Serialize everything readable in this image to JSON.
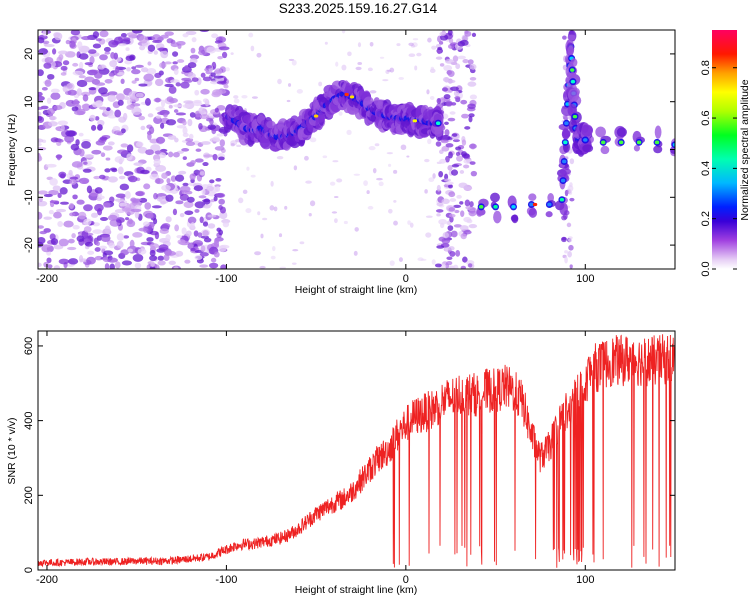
{
  "title": "S233.2025.159.16.27.G14",
  "chart_data": [
    {
      "type": "heatmap",
      "xlabel": "Height of straight line (km)",
      "ylabel": "Frequency (Hz)",
      "xlim": [
        -205,
        150
      ],
      "ylim": [
        -25,
        25
      ],
      "xticks": [
        -200,
        -100,
        0,
        100
      ],
      "yticks": [
        -20,
        -10,
        0,
        10,
        20
      ],
      "colorbar": {
        "label": "Normalized spectral amplitude",
        "range": [
          0,
          0.95
        ],
        "ticks": [
          0.0,
          0.2,
          0.4,
          0.6,
          0.8
        ],
        "tick_labels": [
          "0.0",
          "0.2",
          "0.4",
          "0.6",
          "0.8"
        ]
      },
      "ridge": [
        {
          "x": -100,
          "y": 7
        },
        {
          "x": -95,
          "y": 6
        },
        {
          "x": -90,
          "y": 4.5
        },
        {
          "x": -85,
          "y": 4
        },
        {
          "x": -80,
          "y": 4.5
        },
        {
          "x": -75,
          "y": 3
        },
        {
          "x": -70,
          "y": 2.5
        },
        {
          "x": -65,
          "y": 3
        },
        {
          "x": -60,
          "y": 4
        },
        {
          "x": -55,
          "y": 5.5
        },
        {
          "x": -50,
          "y": 7
        },
        {
          "x": -45,
          "y": 9
        },
        {
          "x": -40,
          "y": 10.5
        },
        {
          "x": -35,
          "y": 11.5
        },
        {
          "x": -30,
          "y": 11
        },
        {
          "x": -25,
          "y": 10
        },
        {
          "x": -20,
          "y": 8.5
        },
        {
          "x": -15,
          "y": 7.5
        },
        {
          "x": -10,
          "y": 7
        },
        {
          "x": -5,
          "y": 6.5
        },
        {
          "x": 0,
          "y": 6.5
        },
        {
          "x": 5,
          "y": 6
        },
        {
          "x": 10,
          "y": 6
        },
        {
          "x": 15,
          "y": 5.5
        },
        {
          "x": 18,
          "y": 5.5
        },
        {
          "x": 42,
          "y": -12
        },
        {
          "x": 50,
          "y": -12
        },
        {
          "x": 60,
          "y": -12
        },
        {
          "x": 70,
          "y": -11.5
        },
        {
          "x": 80,
          "y": -11.5
        },
        {
          "x": 87,
          "y": -10.5
        },
        {
          "x": 92,
          "y": 21.5
        },
        {
          "x": 95,
          "y": 2
        },
        {
          "x": 100,
          "y": 2
        },
        {
          "x": 110,
          "y": 1.5
        },
        {
          "x": 120,
          "y": 1.5
        },
        {
          "x": 130,
          "y": 1.5
        },
        {
          "x": 140,
          "y": 1.5
        },
        {
          "x": 150,
          "y": 1
        }
      ]
    },
    {
      "type": "line",
      "xlabel": "Height of straight line (km)",
      "ylabel": "SNR (10 * v/v)",
      "xlim": [
        -205,
        150
      ],
      "ylim": [
        0,
        640
      ],
      "xticks": [
        -200,
        -100,
        0,
        100
      ],
      "yticks": [
        0,
        200,
        400,
        600
      ],
      "color": "#ee2222",
      "series": [
        {
          "x": [
            -205,
            -190,
            -180,
            -170,
            -160,
            -150,
            -140,
            -130,
            -120,
            -110,
            -100,
            -95,
            -90,
            -85,
            -80,
            -75,
            -70,
            -65,
            -60,
            -55,
            -50,
            -45,
            -40,
            -35,
            -30,
            -25,
            -20,
            -15,
            -10,
            -5,
            0,
            5,
            10,
            15,
            20,
            25,
            30,
            35,
            40,
            45,
            50,
            55,
            60,
            65,
            70,
            75,
            80,
            85,
            90,
            95,
            100,
            105,
            110,
            115,
            120,
            125,
            130,
            135,
            140,
            145,
            150
          ],
          "y": [
            20,
            20,
            22,
            22,
            22,
            24,
            24,
            25,
            30,
            35,
            55,
            65,
            70,
            70,
            75,
            80,
            85,
            95,
            110,
            130,
            150,
            165,
            180,
            190,
            210,
            240,
            270,
            300,
            320,
            360,
            390,
            410,
            420,
            430,
            450,
            460,
            470,
            470,
            470,
            480,
            480,
            490,
            480,
            450,
            360,
            300,
            330,
            390,
            430,
            470,
            510,
            540,
            550,
            560,
            560,
            565,
            560,
            560,
            560,
            565,
            570
          ]
        }
      ]
    }
  ]
}
